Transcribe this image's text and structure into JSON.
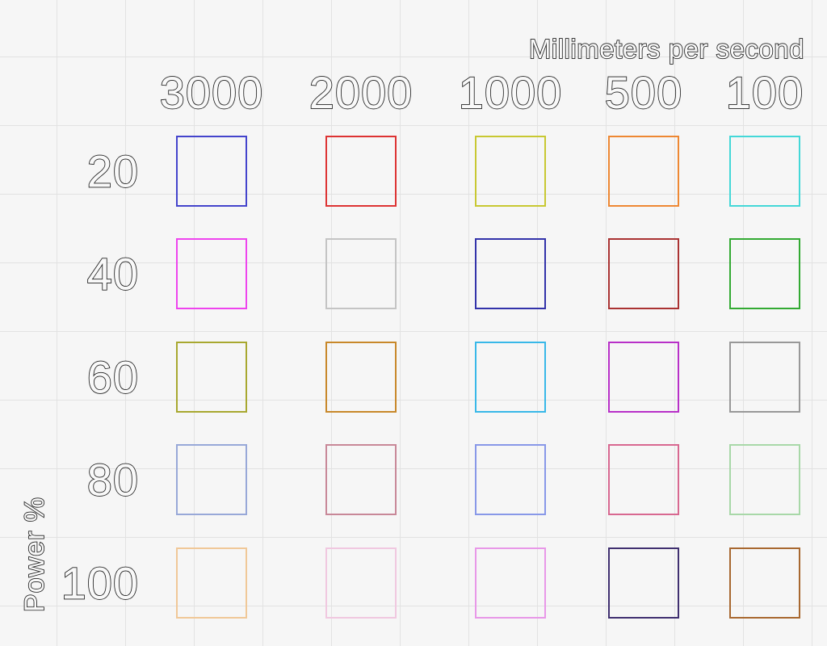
{
  "chart_data": {
    "type": "heatmap",
    "title": "Millimeters per second",
    "xlabel": "Millimeters per second",
    "ylabel": "Power %",
    "columns": [
      "3000",
      "2000",
      "1000",
      "500",
      "100"
    ],
    "rows": [
      "20",
      "40",
      "60",
      "80",
      "100"
    ],
    "cell_style": "outlined-square",
    "cell_colors": [
      [
        "#4444cc",
        "#dd3333",
        "#c8c832",
        "#ee8833",
        "#44d8d8"
      ],
      [
        "#ee44ee",
        "#c4c4c4",
        "#3333aa",
        "#aa3333",
        "#33aa33"
      ],
      [
        "#a8a830",
        "#c8882a",
        "#38b8e8",
        "#b830c8",
        "#989898"
      ],
      [
        "#98a8d8",
        "#c88898",
        "#8898e8",
        "#d86890",
        "#a8d8a8"
      ],
      [
        "#f0c898",
        "#f0c8e0",
        "#e898e8",
        "#403070",
        "#a86830"
      ]
    ],
    "grid": "on",
    "legend": "none"
  }
}
